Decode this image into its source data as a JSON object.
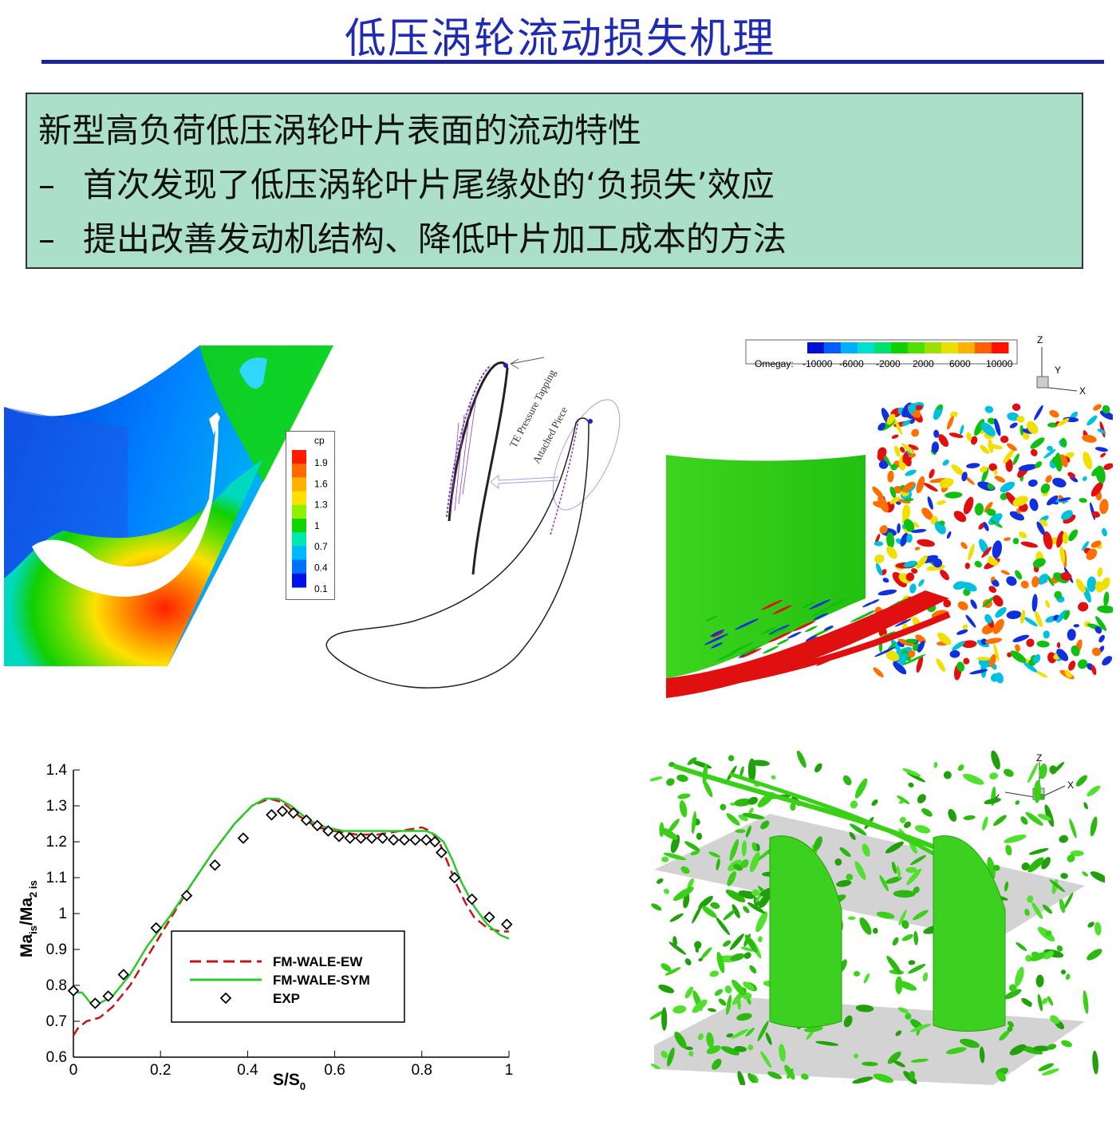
{
  "title": "低压涡轮流动损失机理",
  "summary": {
    "heading": "新型高负荷低压涡轮叶片表面的流动特性",
    "bullets": [
      "首次发现了低压涡轮叶片尾缘处的‘负损失’效应",
      "提出改善发动机结构、降低叶片加工成本的方法"
    ],
    "bullet_marker": "–"
  },
  "cp_legend": {
    "title": "cp",
    "ticks": [
      "1.9",
      "1.6",
      "1.3",
      "1",
      "0.7",
      "0.4",
      "0.1"
    ],
    "colors": [
      "#ff1a00",
      "#ff6a00",
      "#ffb000",
      "#ffe100",
      "#8ff000",
      "#10d600",
      "#00e8b0",
      "#00b8ff",
      "#0070ff",
      "#0010e8"
    ]
  },
  "schematic": {
    "label_tapping": "TE Pressure Tapping",
    "label_piece": "Attached Piece"
  },
  "omega_legend": {
    "title": "Omegay:",
    "ticks": [
      "-10000",
      "-6000",
      "-2000",
      "2000",
      "6000",
      "10000"
    ],
    "colors": [
      "#0010d0",
      "#0060ff",
      "#00b0ff",
      "#00e0d0",
      "#00e070",
      "#10d000",
      "#50e000",
      "#a0e000",
      "#e8e000",
      "#ffb000",
      "#ff6000",
      "#ff1000"
    ]
  },
  "axes3d_top": {
    "z": "Z",
    "y": "Y",
    "x": "X"
  },
  "axes3d_bottom": {
    "z": "Z",
    "y": "Y",
    "x": "X"
  },
  "chart_data": {
    "type": "line",
    "xlabel": "S/S",
    "xlabel_sub": "0",
    "ylabel": "Ma/Ma",
    "ylabel_sub1": "is",
    "ylabel_sub2": "2 is",
    "xlim": [
      0,
      1
    ],
    "ylim": [
      0.6,
      1.4
    ],
    "xticks": [
      "0",
      "0.2",
      "0.4",
      "0.6",
      "0.8",
      "1"
    ],
    "yticks": [
      "0.6",
      "0.7",
      "0.8",
      "0.9",
      "1",
      "1.1",
      "1.2",
      "1.3",
      "1.4"
    ],
    "series": [
      {
        "name": "FM-WALE-EW",
        "style": "dashed",
        "color": "#c01818",
        "x": [
          0.0,
          0.01,
          0.03,
          0.06,
          0.09,
          0.13,
          0.17,
          0.22,
          0.27,
          0.32,
          0.37,
          0.41,
          0.45,
          0.48,
          0.52,
          0.56,
          0.6,
          0.65,
          0.7,
          0.75,
          0.8,
          0.82,
          0.84,
          0.86,
          0.88,
          0.9,
          0.92,
          0.95,
          0.98,
          1.0
        ],
        "y": [
          0.66,
          0.68,
          0.7,
          0.71,
          0.74,
          0.8,
          0.88,
          0.98,
          1.08,
          1.17,
          1.25,
          1.3,
          1.32,
          1.31,
          1.27,
          1.24,
          1.23,
          1.22,
          1.22,
          1.23,
          1.24,
          1.23,
          1.2,
          1.14,
          1.08,
          1.03,
          0.99,
          0.96,
          0.95,
          0.95
        ]
      },
      {
        "name": "FM-WALE-SYM",
        "style": "solid",
        "color": "#2ec82e",
        "x": [
          0.0,
          0.01,
          0.02,
          0.04,
          0.06,
          0.09,
          0.13,
          0.17,
          0.22,
          0.27,
          0.32,
          0.37,
          0.41,
          0.44,
          0.47,
          0.5,
          0.54,
          0.58,
          0.62,
          0.67,
          0.72,
          0.77,
          0.81,
          0.83,
          0.85,
          0.87,
          0.89,
          0.92,
          0.95,
          0.98,
          1.0
        ],
        "y": [
          0.79,
          0.78,
          0.78,
          0.75,
          0.75,
          0.77,
          0.83,
          0.91,
          0.99,
          1.08,
          1.17,
          1.25,
          1.3,
          1.32,
          1.32,
          1.3,
          1.26,
          1.24,
          1.23,
          1.23,
          1.23,
          1.23,
          1.23,
          1.22,
          1.2,
          1.15,
          1.09,
          1.02,
          0.97,
          0.94,
          0.93
        ]
      },
      {
        "name": "EXP",
        "style": "markers",
        "marker": "diamond",
        "color": "#000000",
        "x": [
          0.0,
          0.05,
          0.08,
          0.115,
          0.19,
          0.26,
          0.325,
          0.39,
          0.455,
          0.48,
          0.505,
          0.535,
          0.56,
          0.585,
          0.61,
          0.635,
          0.66,
          0.685,
          0.71,
          0.735,
          0.76,
          0.785,
          0.81,
          0.83,
          0.845,
          0.875,
          0.915,
          0.955,
          0.995
        ],
        "y": [
          0.785,
          0.75,
          0.77,
          0.83,
          0.96,
          1.05,
          1.135,
          1.21,
          1.275,
          1.285,
          1.28,
          1.26,
          1.245,
          1.23,
          1.215,
          1.21,
          1.21,
          1.21,
          1.21,
          1.205,
          1.205,
          1.205,
          1.205,
          1.2,
          1.17,
          1.1,
          1.04,
          0.99,
          0.97
        ]
      }
    ]
  }
}
